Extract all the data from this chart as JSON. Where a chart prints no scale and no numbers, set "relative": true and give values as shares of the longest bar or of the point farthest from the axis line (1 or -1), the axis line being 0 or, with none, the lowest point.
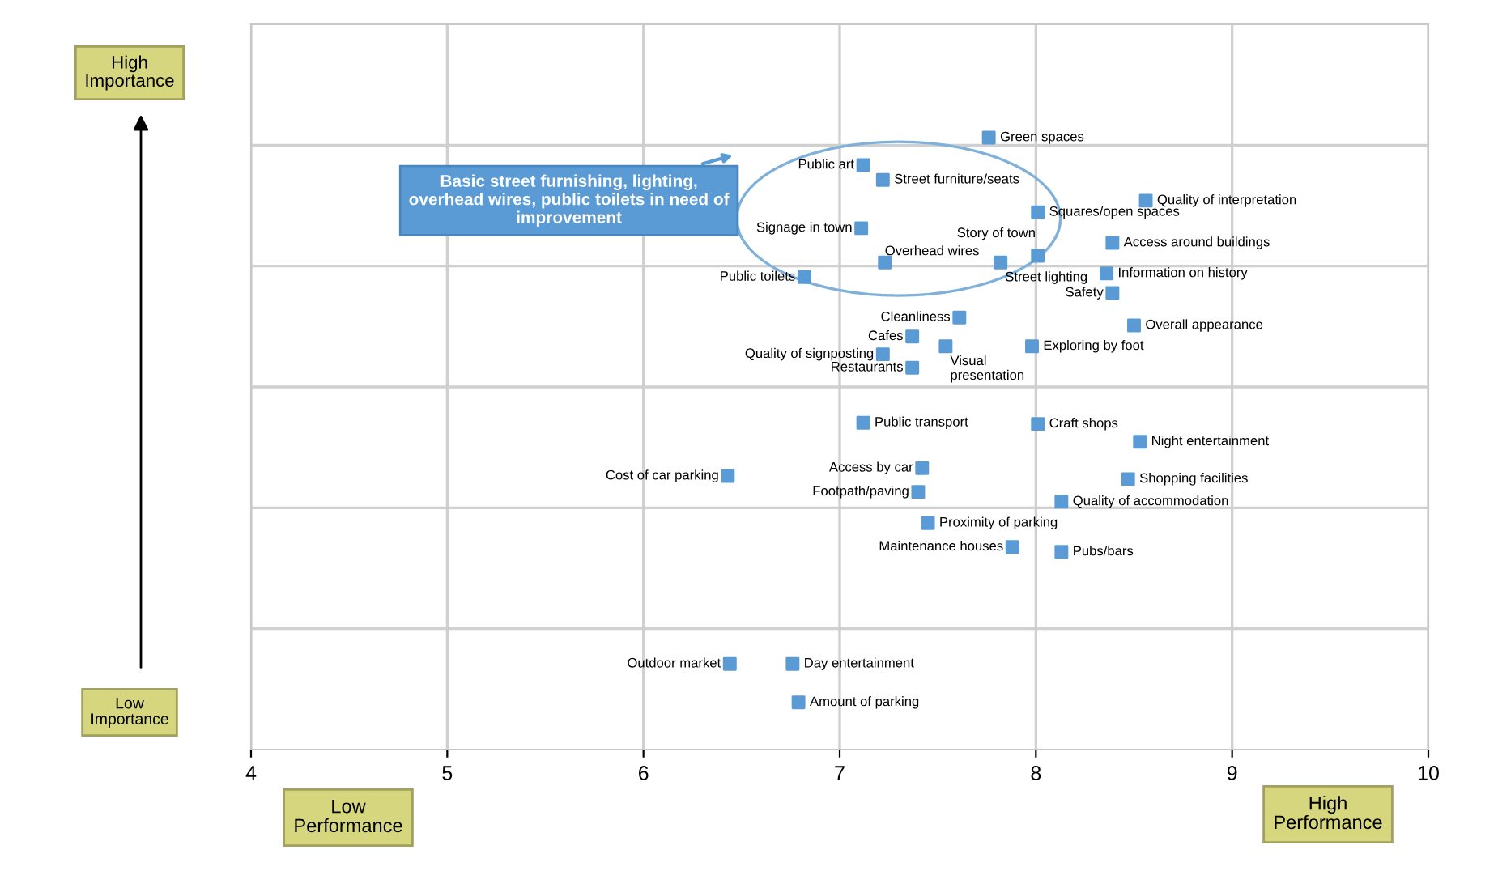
{
  "chart_data": {
    "type": "scatter",
    "relative": true,
    "marker": "square",
    "grid": true,
    "tick_labels": "x",
    "xlim": [
      4,
      10
    ],
    "xticks": [
      4,
      5,
      6,
      7,
      8,
      9,
      10
    ],
    "series": [
      {
        "color": "#5b9bd5",
        "x": [
          7.76,
          7.12,
          7.22,
          8.01,
          8.56,
          7.11,
          8.39,
          8.01,
          7.23,
          7.82,
          6.82,
          8.36,
          8.39,
          7.61,
          8.5,
          7.37,
          7.22,
          7.54,
          7.98,
          7.37,
          7.12,
          8.01,
          8.53,
          6.43,
          7.42,
          8.47,
          7.4,
          8.13,
          7.45,
          7.88,
          8.13,
          6.44,
          6.76,
          6.79
        ],
        "values": [
          1,
          0.955,
          0.931,
          0.878,
          0.897,
          0.852,
          0.828,
          0.807,
          0.796,
          0.796,
          0.772,
          0.778,
          0.746,
          0.706,
          0.693,
          0.675,
          0.646,
          0.659,
          0.659,
          0.624,
          0.534,
          0.532,
          0.503,
          0.447,
          0.46,
          0.442,
          0.421,
          0.405,
          0.37,
          0.331,
          0.323,
          0.14,
          0.14,
          0.077
        ]
      }
    ],
    "annotations": [
      "High Importance",
      "Low Importance",
      "Low Performance",
      "High Performance",
      "Basic street furnishing, lighting, overhead wires, public toilets in need of improvement",
      {
        "text": "Green spaces",
        "x": 7.76,
        "y": 1
      },
      {
        "text": "Public art",
        "x": 7.12,
        "y": 0.955
      },
      {
        "text": "Street furniture/seats",
        "x": 7.22,
        "y": 0.931
      },
      {
        "text": "Squares/open spaces",
        "x": 8.01,
        "y": 0.878
      },
      {
        "text": "Quality of interpretation",
        "x": 8.56,
        "y": 0.897
      },
      {
        "text": "Signage in town",
        "x": 7.11,
        "y": 0.852
      },
      {
        "text": "Access around buildings",
        "x": 8.39,
        "y": 0.828
      },
      {
        "text": "Story of town",
        "x": 8.01,
        "y": 0.807
      },
      {
        "text": "Overhead wires",
        "x": 7.23,
        "y": 0.796
      },
      {
        "text": "Street lighting",
        "x": 7.82,
        "y": 0.796
      },
      {
        "text": "Public toilets",
        "x": 6.82,
        "y": 0.772
      },
      {
        "text": "Information on history",
        "x": 8.36,
        "y": 0.778
      },
      {
        "text": "Safety",
        "x": 8.39,
        "y": 0.746
      },
      {
        "text": "Cleanliness",
        "x": 7.61,
        "y": 0.706
      },
      {
        "text": "Overall appearance",
        "x": 8.5,
        "y": 0.693
      },
      {
        "text": "Cafes",
        "x": 7.37,
        "y": 0.675
      },
      {
        "text": "Quality of signposting",
        "x": 7.22,
        "y": 0.646
      },
      {
        "text": "Visual\npresentation",
        "x": 7.54,
        "y": 0.659
      },
      {
        "text": "Exploring by foot",
        "x": 7.98,
        "y": 0.659
      },
      {
        "text": "Restaurants",
        "x": 7.37,
        "y": 0.624
      },
      {
        "text": "Public transport",
        "x": 7.12,
        "y": 0.534
      },
      {
        "text": "Craft shops",
        "x": 8.01,
        "y": 0.532
      },
      {
        "text": "Night entertainment",
        "x": 8.53,
        "y": 0.503
      },
      {
        "text": "Cost of car parking",
        "x": 6.43,
        "y": 0.447
      },
      {
        "text": "Access by car",
        "x": 7.42,
        "y": 0.46
      },
      {
        "text": "Shopping facilities",
        "x": 8.47,
        "y": 0.442
      },
      {
        "text": "Footpath/paving",
        "x": 7.4,
        "y": 0.421
      },
      {
        "text": "Quality of accommodation",
        "x": 8.13,
        "y": 0.405
      },
      {
        "text": "Proximity of parking",
        "x": 7.45,
        "y": 0.37
      },
      {
        "text": "Maintenance houses",
        "x": 7.88,
        "y": 0.331
      },
      {
        "text": "Pubs/bars",
        "x": 8.13,
        "y": 0.323
      },
      {
        "text": "Outdoor market",
        "x": 6.44,
        "y": 0.14
      },
      {
        "text": "Day entertainment",
        "x": 6.76,
        "y": 0.14
      },
      {
        "text": "Amount of parking",
        "x": 6.79,
        "y": 0.077
      }
    ]
  }
}
